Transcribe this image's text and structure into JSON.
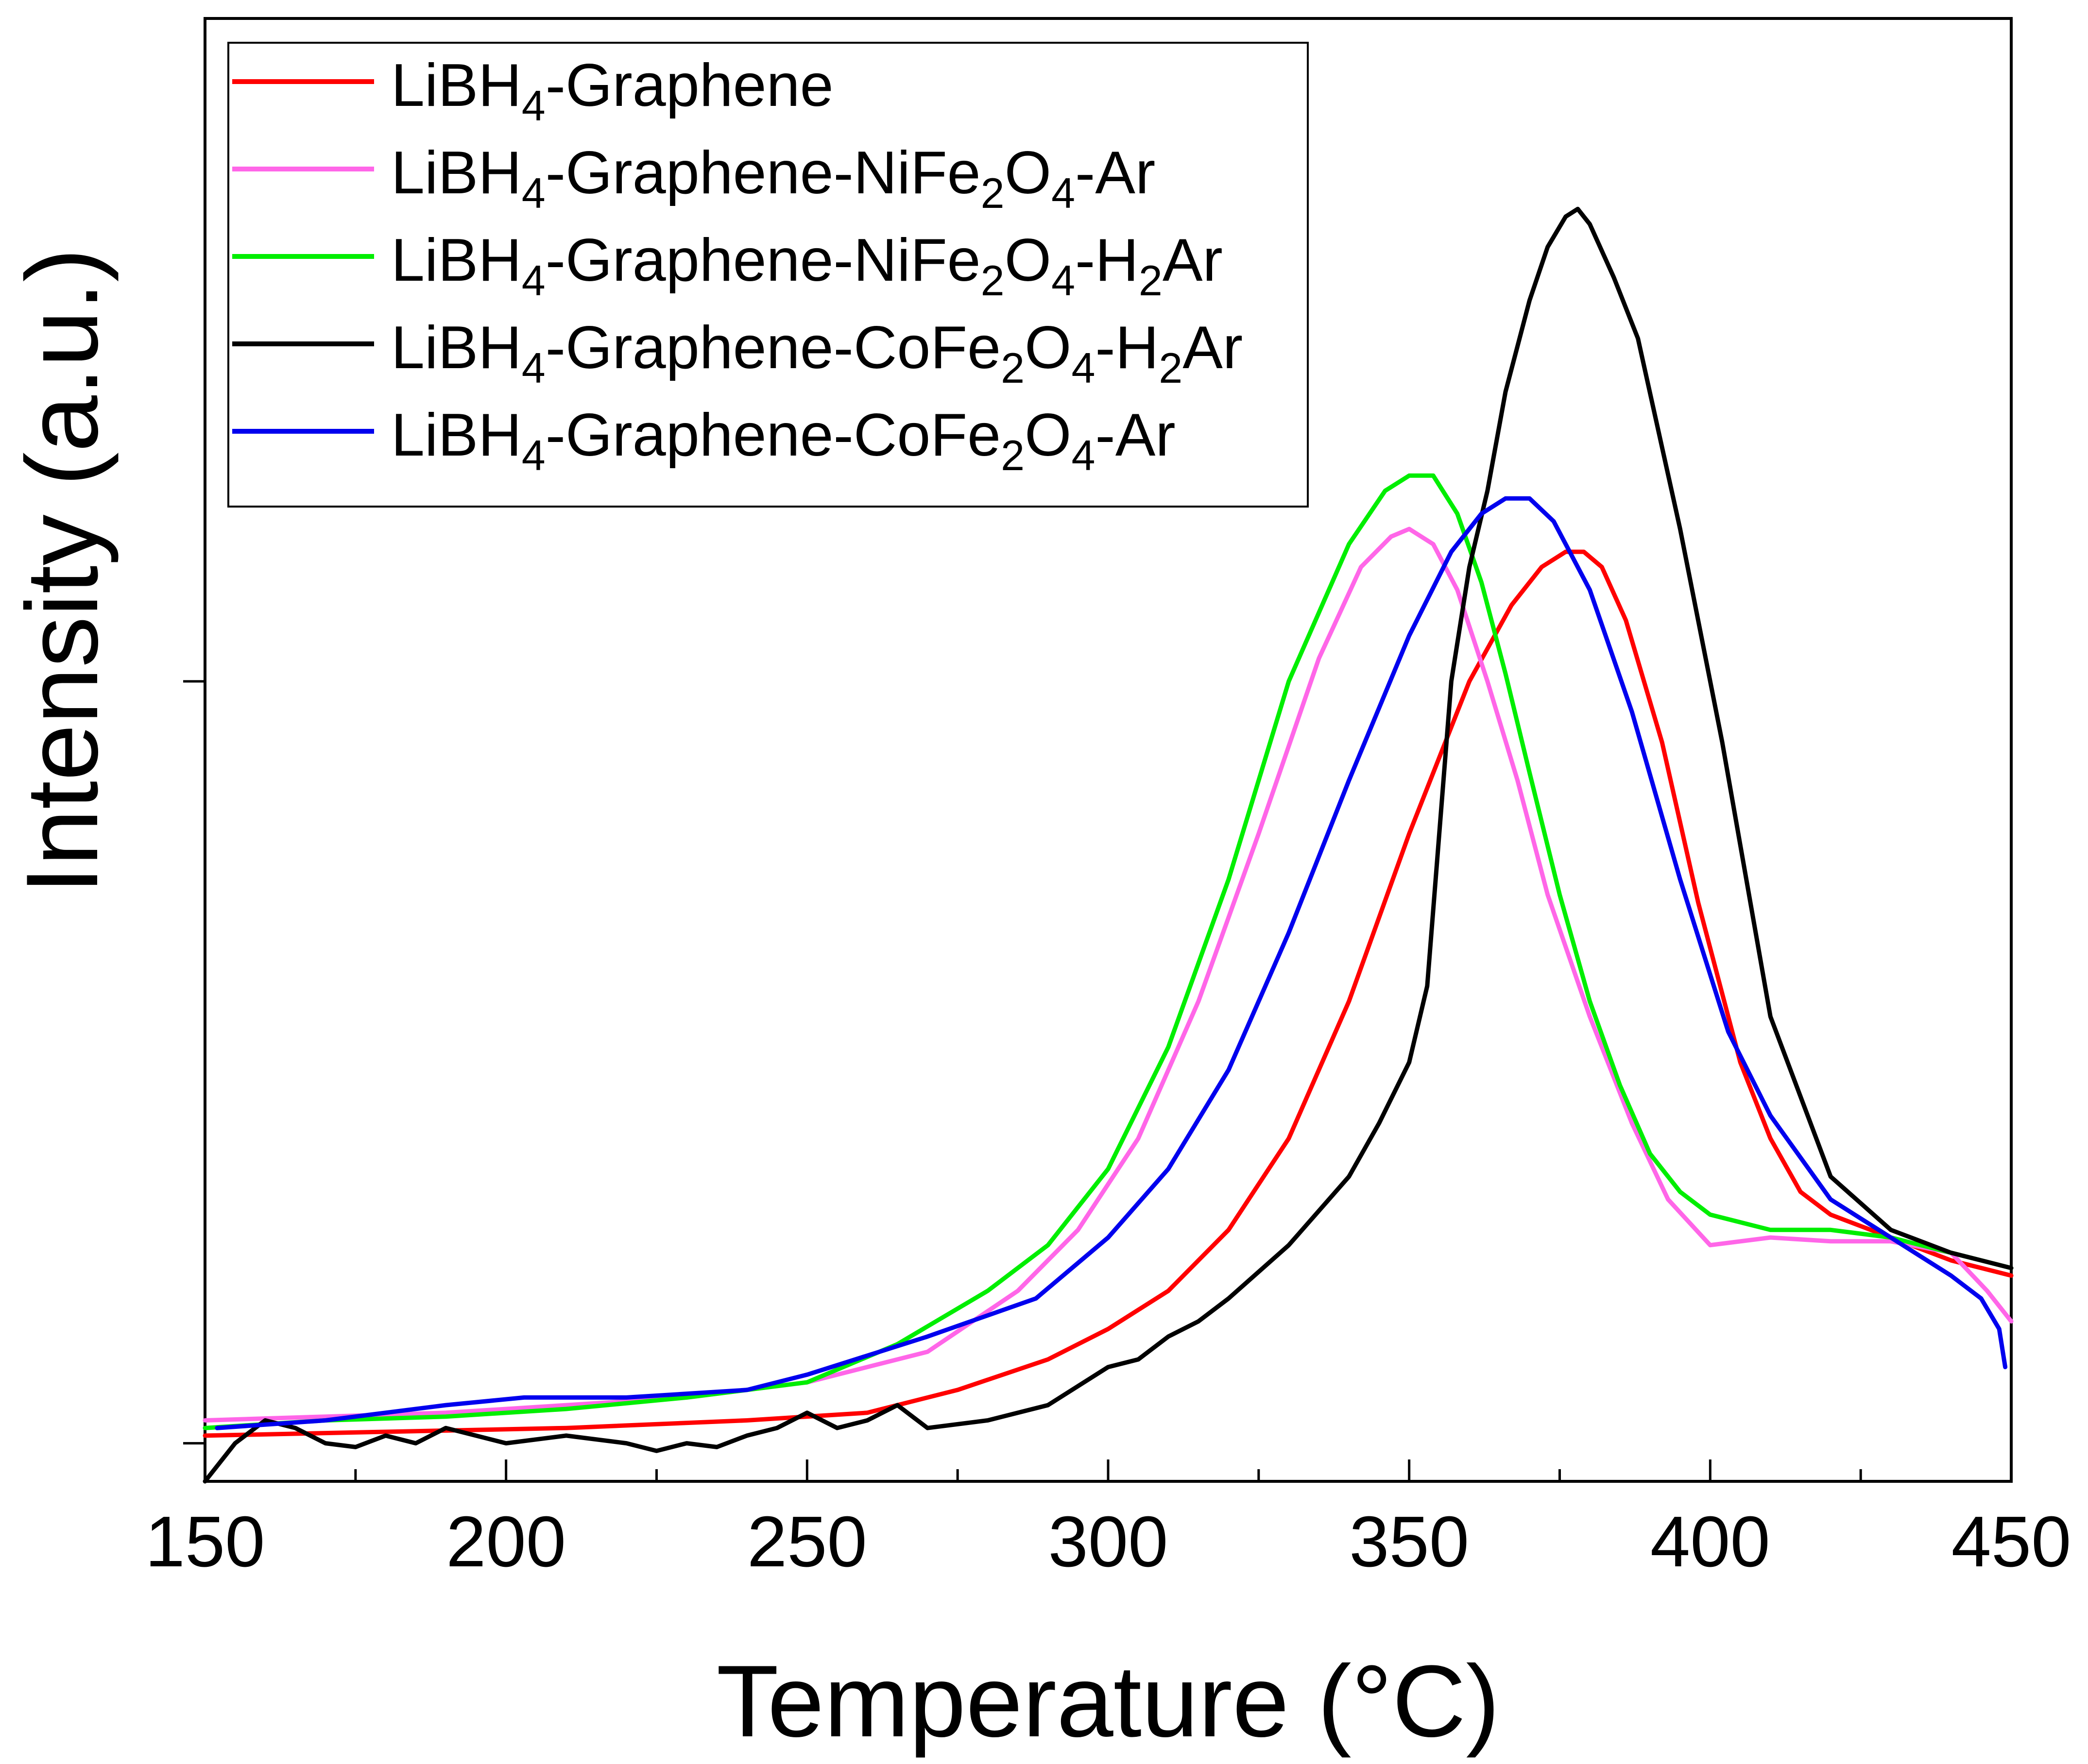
{
  "chart_data": {
    "type": "line",
    "title": "",
    "xlabel": "Temperature (°C)",
    "ylabel": "Intensity (a.u.)",
    "xlim": [
      150,
      450
    ],
    "ylim": [
      -0.05,
      1.87
    ],
    "x_ticks": [
      150,
      200,
      250,
      300,
      350,
      400,
      450
    ],
    "x_tick_labels": [
      "150",
      "200",
      "250",
      "300",
      "350",
      "400",
      "450"
    ],
    "x_minor_step": 25,
    "y_ticks": [
      0,
      1
    ],
    "y_tick_labels": [
      "",
      ""
    ],
    "grid": false,
    "legend_position": "top-left",
    "series": [
      {
        "name": "LiBH4-Graphene",
        "legend": {
          "base": "LiBH",
          "sub1": "4",
          "mid": "-Graphene",
          "sub2": "",
          "mid2": "",
          "sub3": "",
          "tail": ""
        },
        "color": "#ff0000",
        "x": [
          150,
          180,
          210,
          240,
          260,
          275,
          290,
          300,
          310,
          320,
          330,
          340,
          350,
          360,
          367,
          372,
          376,
          379,
          382,
          386,
          392,
          398,
          405,
          410,
          415,
          420,
          430,
          440,
          450
        ],
        "y": [
          0.01,
          0.015,
          0.02,
          0.03,
          0.04,
          0.07,
          0.11,
          0.15,
          0.2,
          0.28,
          0.4,
          0.58,
          0.8,
          1.0,
          1.1,
          1.15,
          1.17,
          1.17,
          1.15,
          1.08,
          0.92,
          0.71,
          0.5,
          0.4,
          0.33,
          0.3,
          0.27,
          0.24,
          0.22
        ]
      },
      {
        "name": "LiBH4-Graphene-NiFe2O4-Ar",
        "legend": {
          "base": "LiBH",
          "sub1": "4",
          "mid": "-Graphene-NiFe",
          "sub2": "2",
          "mid2": "O",
          "sub3": "4",
          "tail": "-Ar"
        },
        "color": "#ff66e8",
        "x": [
          150,
          170,
          190,
          210,
          230,
          250,
          270,
          285,
          295,
          305,
          315,
          325,
          335,
          342,
          347,
          350,
          354,
          358,
          363,
          368,
          373,
          380,
          387,
          393,
          400,
          410,
          420,
          430,
          440,
          446,
          450
        ],
        "y": [
          0.03,
          0.035,
          0.04,
          0.05,
          0.06,
          0.08,
          0.12,
          0.2,
          0.28,
          0.4,
          0.58,
          0.8,
          1.03,
          1.15,
          1.19,
          1.2,
          1.18,
          1.12,
          1.0,
          0.87,
          0.72,
          0.56,
          0.42,
          0.32,
          0.26,
          0.27,
          0.265,
          0.265,
          0.25,
          0.2,
          0.16
        ]
      },
      {
        "name": "LiBH4-Graphene-NiFe2O4-H2Ar",
        "legend": {
          "base": "LiBH",
          "sub1": "4",
          "mid": "-Graphene-NiFe",
          "sub2": "2",
          "mid2": "O",
          "sub3": "4",
          "tail": "-H",
          "sub4": "2",
          "tail2": "Ar"
        },
        "color": "#00ee00",
        "x": [
          150,
          170,
          190,
          210,
          230,
          250,
          265,
          280,
          290,
          300,
          310,
          320,
          330,
          340,
          346,
          350,
          354,
          358,
          362,
          366,
          370,
          375,
          380,
          385,
          390,
          395,
          400,
          410,
          420,
          430,
          440,
          450
        ],
        "y": [
          0.02,
          0.03,
          0.035,
          0.045,
          0.06,
          0.08,
          0.13,
          0.2,
          0.26,
          0.36,
          0.52,
          0.74,
          1.0,
          1.18,
          1.25,
          1.27,
          1.27,
          1.22,
          1.13,
          1.01,
          0.88,
          0.72,
          0.58,
          0.47,
          0.38,
          0.33,
          0.3,
          0.28,
          0.28,
          0.27,
          0.25,
          0.23
        ]
      },
      {
        "name": "LiBH4-Graphene-CoFe2O4-H2Ar",
        "legend": {
          "base": "LiBH",
          "sub1": "4",
          "mid": "-Graphene-CoFe",
          "sub2": "2",
          "mid2": "O",
          "sub3": "4",
          "tail": "-H",
          "sub4": "2",
          "tail2": "Ar"
        },
        "color": "#000000",
        "x": [
          150,
          155,
          160,
          165,
          170,
          175,
          180,
          185,
          190,
          195,
          200,
          210,
          220,
          225,
          230,
          235,
          240,
          245,
          250,
          255,
          260,
          265,
          270,
          280,
          290,
          300,
          305,
          310,
          315,
          320,
          330,
          340,
          345,
          350,
          353,
          355,
          357,
          360,
          363,
          366,
          370,
          373,
          376,
          378,
          380,
          384,
          388,
          395,
          402,
          410,
          420,
          430,
          440,
          450
        ],
        "y": [
          -0.05,
          0.0,
          0.03,
          0.02,
          0.0,
          -0.005,
          0.01,
          0.0,
          0.02,
          0.01,
          0.0,
          0.01,
          0.0,
          -0.01,
          0.0,
          -0.005,
          0.01,
          0.02,
          0.04,
          0.02,
          0.03,
          0.05,
          0.02,
          0.03,
          0.05,
          0.1,
          0.11,
          0.14,
          0.16,
          0.19,
          0.26,
          0.35,
          0.42,
          0.5,
          0.6,
          0.8,
          1.0,
          1.15,
          1.25,
          1.38,
          1.5,
          1.57,
          1.61,
          1.62,
          1.6,
          1.53,
          1.45,
          1.2,
          0.92,
          0.56,
          0.35,
          0.28,
          0.25,
          0.23
        ]
      },
      {
        "name": "LiBH4-Graphene-CoFe2O4-Ar",
        "legend": {
          "base": "LiBH",
          "sub1": "4",
          "mid": "-Graphene-CoFe",
          "sub2": "2",
          "mid2": "O",
          "sub3": "4",
          "tail": "-Ar"
        },
        "color": "#0000ee",
        "x": [
          152,
          170,
          190,
          203,
          220,
          240,
          250,
          270,
          288,
          300,
          310,
          320,
          330,
          340,
          350,
          357,
          362,
          366,
          370,
          374,
          380,
          387,
          395,
          403,
          410,
          420,
          430,
          440,
          445,
          448,
          449
        ],
        "y": [
          0.02,
          0.03,
          0.05,
          0.06,
          0.06,
          0.07,
          0.09,
          0.14,
          0.19,
          0.27,
          0.36,
          0.49,
          0.67,
          0.87,
          1.06,
          1.17,
          1.22,
          1.24,
          1.24,
          1.21,
          1.12,
          0.96,
          0.74,
          0.54,
          0.43,
          0.32,
          0.27,
          0.22,
          0.19,
          0.15,
          0.1
        ]
      }
    ]
  }
}
